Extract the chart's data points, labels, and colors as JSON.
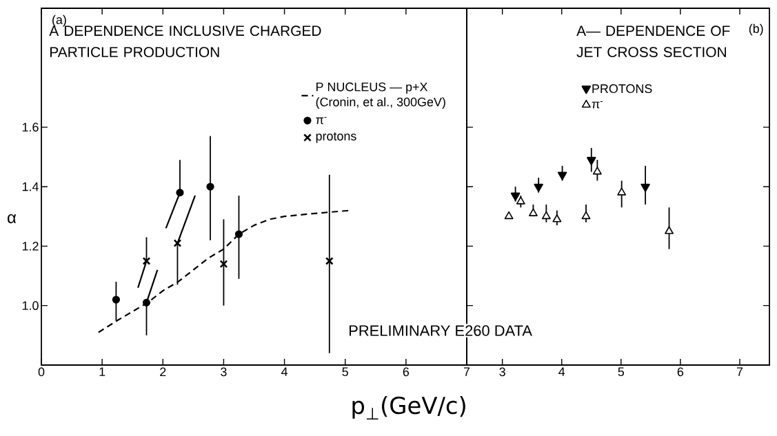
{
  "chart_data": [
    {
      "type": "scatter",
      "title": "A DEPENDENCE INCLUSIVE CHARGED PARTICLE PRODUCTION",
      "xlabel": "p$_{⊥}$(GeV/c)",
      "ylabel": "α",
      "annotations": [
        "(a)",
        "PRELIMINARY E260 DATA"
      ],
      "xlim": [
        0,
        7
      ],
      "ylim": [
        0.8,
        2.0
      ],
      "xticks": [
        0,
        1,
        2,
        3,
        4,
        5,
        6,
        7
      ],
      "yticks": [
        {
          "value": 1,
          "label": "1.0"
        },
        1.2,
        1.4,
        1.6
      ],
      "legend": "top right",
      "series": [
        {
          "name": "P NUCLEUS — p+X (Cronin, et al., 300GeV)",
          "type": "line",
          "line_style": "dashed",
          "marker": "none",
          "color": "#000000",
          "x": [
            0.94,
            1.25,
            1.5,
            1.75,
            2.0,
            2.25,
            2.5,
            2.75,
            3.0,
            3.25,
            3.5,
            3.75,
            4.0,
            4.5,
            5.08
          ],
          "values": [
            0.91,
            0.95,
            0.98,
            1.01,
            1.05,
            1.08,
            1.12,
            1.16,
            1.19,
            1.24,
            1.27,
            1.29,
            1.3,
            1.31,
            1.32
          ]
        },
        {
          "name": "π$^{-}$",
          "marker": "circle",
          "color": "#000000",
          "x": [
            1.23,
            1.73,
            2.28,
            2.78,
            3.25
          ],
          "values": [
            1.02,
            1.01,
            1.38,
            1.4,
            1.24
          ],
          "errors": [
            [
              0.95,
              1.08
            ],
            [
              0.9,
              1.01
            ],
            [
              1.38,
              1.49
            ],
            [
              1.22,
              1.57
            ],
            [
              1.09,
              1.37
            ]
          ]
        },
        {
          "name": "protons",
          "marker": "cross",
          "color": "#000000",
          "x": [
            1.73,
            2.24,
            3.0,
            4.74
          ],
          "values": [
            1.15,
            1.21,
            1.14,
            1.15
          ],
          "errors": [
            [
              1.15,
              1.23
            ],
            [
              1.07,
              1.21
            ],
            [
              1.0,
              1.29
            ],
            [
              0.84,
              1.44
            ]
          ]
        },
        {
          "type": "line",
          "color": "#000000",
          "x": [
            1.59,
            1.73
          ],
          "values": [
            1.06,
            1.15
          ]
        },
        {
          "type": "line",
          "color": "#000000",
          "x": [
            1.73,
            1.91
          ],
          "values": [
            1.01,
            1.12
          ]
        },
        {
          "type": "line",
          "color": "#000000",
          "x": [
            2.05,
            2.28
          ],
          "values": [
            1.26,
            1.38
          ]
        },
        {
          "type": "line",
          "color": "#000000",
          "x": [
            2.24,
            2.53
          ],
          "values": [
            1.21,
            1.37
          ]
        }
      ]
    },
    {
      "type": "scatter",
      "title": "A— DEPENDENCE OF JET CROSS SECTION",
      "annotations": [
        "(b)"
      ],
      "xlim": [
        2.4,
        7.5
      ],
      "ylim": [
        0.8,
        2.0
      ],
      "xticks": [
        3,
        4,
        5,
        6,
        7
      ],
      "yticks": [
        1,
        1.2,
        1.4,
        1.6
      ],
      "tick_labels": "x",
      "legend": "top",
      "series": [
        {
          "name": "PROTONS",
          "marker": "triangle-down",
          "color": "#000000",
          "x": [
            3.22,
            3.61,
            4.01,
            4.5,
            5.41
          ],
          "values": [
            1.37,
            1.4,
            1.44,
            1.49,
            1.4
          ],
          "errors": [
            [
              1.35,
              1.4
            ],
            [
              1.38,
              1.43
            ],
            [
              1.42,
              1.47
            ],
            [
              1.45,
              1.53
            ],
            [
              1.34,
              1.47
            ]
          ]
        },
        {
          "name": "π$^{-}$",
          "marker": "triangle",
          "color": "#000000",
          "x": [
            3.11,
            3.31,
            3.52,
            3.74,
            3.92,
            4.41,
            4.6,
            5.01,
            5.81
          ],
          "values": [
            1.3,
            1.35,
            1.31,
            1.3,
            1.29,
            1.3,
            1.45,
            1.38,
            1.25
          ],
          "errors": [
            null,
            [
              1.33,
              1.37
            ],
            [
              1.3,
              1.34
            ],
            [
              1.28,
              1.34
            ],
            [
              1.27,
              1.32
            ],
            [
              1.28,
              1.34
            ],
            [
              1.42,
              1.49
            ],
            [
              1.33,
              1.42
            ],
            [
              1.19,
              1.33
            ]
          ]
        }
      ]
    }
  ]
}
